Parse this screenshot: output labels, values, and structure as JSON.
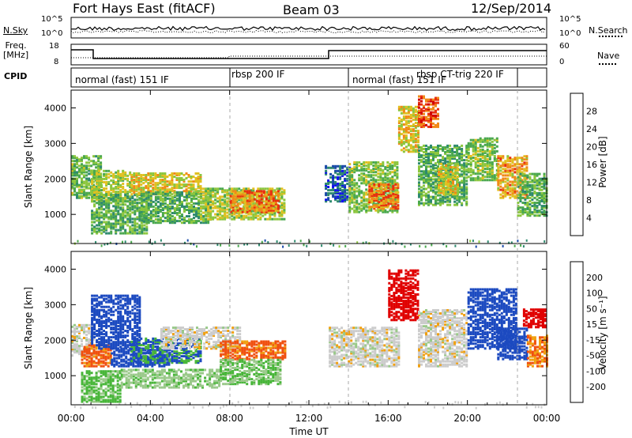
{
  "header": {
    "title": "Fort Hays East (fitACF)",
    "beam": "Beam 03",
    "date": "12/Sep/2014"
  },
  "noise_panel": {
    "left_label": "N.Sky",
    "right_label": "N.Search",
    "left_ticks": [
      "10^5",
      "10^0"
    ],
    "right_ticks": [
      "10^5",
      "10^0"
    ]
  },
  "freq_panel": {
    "left_label_line1": "Freq.",
    "left_label_line2": "[MHz]",
    "right_label": "Nave",
    "left_ticks": [
      "18",
      "8"
    ],
    "right_ticks": [
      "60",
      "0"
    ]
  },
  "cpid": {
    "label": "CPID",
    "modes": [
      {
        "name": "normal (fast) 151 IF",
        "start_hour": 0.0,
        "end_hour": 8.0
      },
      {
        "name": "rbsp 200 IF",
        "start_hour": 8.0,
        "end_hour": 13.9
      },
      {
        "name": "normal (fast) 151 IF",
        "start_hour": 13.9,
        "end_hour": 17.6
      },
      {
        "name": "rbsp CT-trig 220 IF",
        "start_hour": 17.6,
        "end_hour": 22.5
      }
    ]
  },
  "x_axis": {
    "title": "Time UT",
    "ticks": [
      "00:00",
      "04:00",
      "08:00",
      "12:00",
      "16:00",
      "20:00",
      "00:00"
    ]
  },
  "power_colorbar": {
    "title": "Power [dB]",
    "ticks": [
      "28",
      "24",
      "20",
      "16",
      "12",
      "8",
      "4"
    ]
  },
  "velocity_colorbar": {
    "title": "Velocity [m s⁻¹]",
    "ticks": [
      "200",
      "100",
      "50",
      "15",
      "-15",
      "-50",
      "-100",
      "-200"
    ]
  },
  "chart_data": [
    {
      "type": "heatmap",
      "quantity": "Power",
      "ylabel": "Slant Range [km]",
      "xlabel": "",
      "xlim_hours": [
        0,
        24
      ],
      "ylim": [
        180,
        4500
      ],
      "yticks": [
        1000,
        2000,
        3000,
        4000
      ],
      "color_range": [
        0,
        30
      ],
      "colors": [
        "#1010ee",
        "#1a4aa8",
        "#2e8a6e",
        "#4aa84e",
        "#8cc63e",
        "#e0c020",
        "#f08a18",
        "#e83010",
        "#d00000"
      ],
      "regions": [
        {
          "t": [
            0.0,
            1.5
          ],
          "r": [
            1500,
            2700
          ],
          "v": 13
        },
        {
          "t": [
            1.0,
            3.0
          ],
          "r": [
            1400,
            2300
          ],
          "v": 16
        },
        {
          "t": [
            1.0,
            3.8
          ],
          "r": [
            500,
            1600
          ],
          "v": 12
        },
        {
          "t": [
            3.0,
            6.5
          ],
          "r": [
            1600,
            2200
          ],
          "v": 18
        },
        {
          "t": [
            3.5,
            7.0
          ],
          "r": [
            800,
            1700
          ],
          "v": 12
        },
        {
          "t": [
            6.5,
            10.8
          ],
          "r": [
            900,
            1800
          ],
          "v": 16
        },
        {
          "t": [
            8.0,
            10.5
          ],
          "r": [
            1100,
            1700
          ],
          "v": 22
        },
        {
          "t": [
            12.8,
            14.0
          ],
          "r": [
            1400,
            2400
          ],
          "v": 6
        },
        {
          "t": [
            14.0,
            16.5
          ],
          "r": [
            1100,
            2500
          ],
          "v": 14
        },
        {
          "t": [
            15.0,
            16.5
          ],
          "r": [
            1200,
            1900
          ],
          "v": 22
        },
        {
          "t": [
            16.5,
            17.5
          ],
          "r": [
            2800,
            4100
          ],
          "v": 18
        },
        {
          "t": [
            17.5,
            18.5
          ],
          "r": [
            3500,
            4400
          ],
          "v": 24
        },
        {
          "t": [
            17.5,
            20.0
          ],
          "r": [
            1300,
            3000
          ],
          "v": 12
        },
        {
          "t": [
            18.5,
            19.5
          ],
          "r": [
            1600,
            2500
          ],
          "v": 18
        },
        {
          "t": [
            20.0,
            21.5
          ],
          "r": [
            2000,
            3200
          ],
          "v": 14
        },
        {
          "t": [
            21.5,
            23.0
          ],
          "r": [
            1500,
            2700
          ],
          "v": 20
        },
        {
          "t": [
            22.5,
            24.0
          ],
          "r": [
            1000,
            2200
          ],
          "v": 12
        }
      ]
    },
    {
      "type": "heatmap",
      "quantity": "Velocity",
      "ylabel": "Slant Range [km]",
      "xlabel": "Time UT",
      "xlim_hours": [
        0,
        24
      ],
      "ylim": [
        180,
        4500
      ],
      "yticks": [
        1000,
        2000,
        3000,
        4000
      ],
      "color_range": [
        -200,
        200
      ],
      "colors": [
        "#e00000",
        "#f05010",
        "#f0a010",
        "#cccccc",
        "#9ac98a",
        "#49b63a",
        "#1c4ac0",
        "#0018c8"
      ],
      "regions": [
        {
          "t": [
            0.0,
            1.2
          ],
          "r": [
            1600,
            2500
          ],
          "v": 0
        },
        {
          "t": [
            0.5,
            2.0
          ],
          "r": [
            1300,
            1900
          ],
          "v": -60
        },
        {
          "t": [
            0.5,
            2.5
          ],
          "r": [
            300,
            1200
          ],
          "v": 60
        },
        {
          "t": [
            1.0,
            3.5
          ],
          "r": [
            1800,
            3300
          ],
          "v": 180
        },
        {
          "t": [
            2.0,
            5.0
          ],
          "r": [
            1300,
            1800
          ],
          "v": 180
        },
        {
          "t": [
            3.0,
            6.5
          ],
          "r": [
            1400,
            2100
          ],
          "v": 100
        },
        {
          "t": [
            2.5,
            7.5
          ],
          "r": [
            700,
            1200
          ],
          "v": 40
        },
        {
          "t": [
            4.5,
            8.5
          ],
          "r": [
            1800,
            2400
          ],
          "v": 0
        },
        {
          "t": [
            7.5,
            10.8
          ],
          "r": [
            1500,
            2000
          ],
          "v": -60
        },
        {
          "t": [
            7.5,
            10.5
          ],
          "r": [
            800,
            1500
          ],
          "v": 50
        },
        {
          "t": [
            13.0,
            16.5
          ],
          "r": [
            1300,
            2400
          ],
          "v": 0
        },
        {
          "t": [
            16.0,
            17.5
          ],
          "r": [
            2600,
            4000
          ],
          "v": -180
        },
        {
          "t": [
            17.5,
            20.0
          ],
          "r": [
            1300,
            2900
          ],
          "v": 0
        },
        {
          "t": [
            20.0,
            22.5
          ],
          "r": [
            1800,
            3500
          ],
          "v": 180
        },
        {
          "t": [
            21.5,
            23.0
          ],
          "r": [
            1500,
            2400
          ],
          "v": 150
        },
        {
          "t": [
            22.8,
            24.0
          ],
          "r": [
            2400,
            2900
          ],
          "v": -200
        },
        {
          "t": [
            23.0,
            24.0
          ],
          "r": [
            1300,
            2200
          ],
          "v": -50
        }
      ]
    }
  ]
}
